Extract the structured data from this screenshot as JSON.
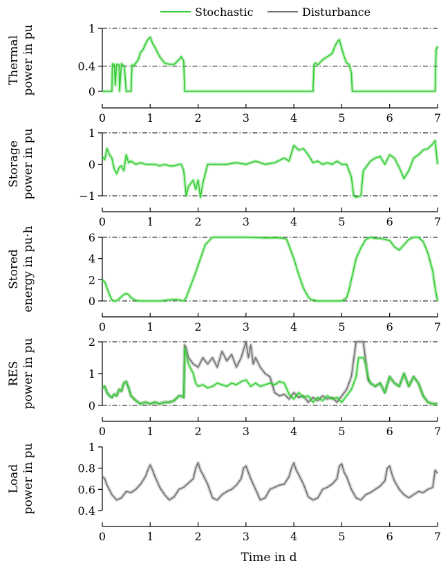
{
  "legend": [
    {
      "name": "Stochastic",
      "color": "#33cc33"
    },
    {
      "name": "Disturbance",
      "color": "#707070"
    }
  ],
  "xlabel": "Time in d",
  "chart_data": [
    {
      "type": "line",
      "ylabel_lines": [
        "Thermal",
        "power in pu"
      ],
      "xlim": [
        0,
        7
      ],
      "ylim": [
        0,
        1
      ],
      "x_ticks": [
        0,
        1,
        2,
        3,
        4,
        5,
        6,
        7
      ],
      "y_ticks": [
        0,
        0.4,
        1
      ],
      "y_tick_labels": [
        "0",
        "0.4",
        "1"
      ],
      "ref_lines": [
        0.4,
        1
      ],
      "series": [
        {
          "name": "Stochastic",
          "color": "#33cc33",
          "x": [
            0,
            0.05,
            0.2,
            0.21,
            0.22,
            0.25,
            0.27,
            0.3,
            0.35,
            0.36,
            0.4,
            0.42,
            0.46,
            0.5,
            0.55,
            0.6,
            0.62,
            0.65,
            0.7,
            0.75,
            0.8,
            0.85,
            0.9,
            0.95,
            1.0,
            1.05,
            1.1,
            1.15,
            1.2,
            1.3,
            1.4,
            1.5,
            1.6,
            1.65,
            1.7,
            1.72,
            1.75,
            2.0,
            3.0,
            4.0,
            4.4,
            4.42,
            4.45,
            4.5,
            4.6,
            4.7,
            4.8,
            4.85,
            4.9,
            4.95,
            5.0,
            5.05,
            5.1,
            5.15,
            5.2,
            5.22,
            5.5,
            6.0,
            6.5,
            6.95,
            6.97,
            7.0
          ],
          "y": [
            0,
            0,
            0,
            0.42,
            0.44,
            0.42,
            0.1,
            0.43,
            0.42,
            0,
            0.44,
            0.42,
            0.4,
            0,
            0,
            0,
            0.42,
            0.4,
            0.45,
            0.5,
            0.62,
            0.66,
            0.75,
            0.82,
            0.86,
            0.76,
            0.7,
            0.62,
            0.55,
            0.45,
            0.43,
            0.43,
            0.5,
            0.55,
            0.48,
            0,
            0,
            0,
            0,
            0,
            0,
            0.42,
            0.45,
            0.42,
            0.5,
            0.55,
            0.6,
            0.7,
            0.78,
            0.82,
            0.68,
            0.55,
            0.45,
            0.43,
            0.3,
            0,
            0,
            0,
            0,
            0,
            0.65,
            0.72
          ]
        }
      ]
    },
    {
      "type": "line",
      "ylabel_lines": [
        "Storage",
        "power in pu"
      ],
      "xlim": [
        0,
        7
      ],
      "ylim": [
        -1,
        1
      ],
      "x_ticks": [
        0,
        1,
        2,
        3,
        4,
        5,
        6,
        7
      ],
      "y_ticks": [
        -1,
        0,
        1
      ],
      "y_tick_labels": [
        "−1",
        "0",
        "1"
      ],
      "ref_lines": [
        -1,
        1
      ],
      "series": [
        {
          "name": "Stochastic",
          "color": "#33cc33",
          "x": [
            0,
            0.05,
            0.1,
            0.15,
            0.2,
            0.25,
            0.3,
            0.35,
            0.4,
            0.45,
            0.5,
            0.55,
            0.6,
            0.7,
            0.8,
            0.9,
            1.0,
            1.1,
            1.2,
            1.3,
            1.4,
            1.5,
            1.6,
            1.65,
            1.7,
            1.75,
            1.8,
            1.85,
            1.9,
            1.95,
            2.0,
            2.05,
            2.1,
            2.2,
            2.4,
            2.6,
            2.8,
            3.0,
            3.2,
            3.4,
            3.6,
            3.8,
            3.9,
            4.0,
            4.1,
            4.2,
            4.3,
            4.4,
            4.5,
            4.6,
            4.7,
            4.8,
            4.9,
            5.0,
            5.1,
            5.2,
            5.25,
            5.3,
            5.4,
            5.45,
            5.5,
            5.6,
            5.7,
            5.8,
            5.9,
            6.0,
            6.1,
            6.2,
            6.3,
            6.4,
            6.5,
            6.6,
            6.7,
            6.8,
            6.9,
            6.95,
            7.0
          ],
          "y": [
            0.25,
            0.15,
            0.5,
            0.3,
            0.2,
            -0.15,
            -0.3,
            -0.1,
            -0.05,
            -0.2,
            0.3,
            0.05,
            0.1,
            0.0,
            0.05,
            0.0,
            0.0,
            0.0,
            -0.05,
            0.0,
            -0.05,
            -0.05,
            0.0,
            0.0,
            -0.2,
            -1.0,
            -0.7,
            -0.6,
            -0.5,
            -0.8,
            -0.5,
            -1.05,
            -0.6,
            0.0,
            0.0,
            0.0,
            0.05,
            0.0,
            0.1,
            0.0,
            0.05,
            0.2,
            0.1,
            0.6,
            0.45,
            0.5,
            0.3,
            0.05,
            0.1,
            0.0,
            0.05,
            0.0,
            0.1,
            0.0,
            0.0,
            -0.4,
            -1.0,
            -1.05,
            -1.0,
            -0.2,
            -0.1,
            0.1,
            0.2,
            0.25,
            0.0,
            0.3,
            0.2,
            -0.1,
            -0.45,
            -0.2,
            0.2,
            0.3,
            0.45,
            0.5,
            0.65,
            0.75,
            0.0
          ]
        }
      ]
    },
    {
      "type": "line",
      "ylabel_lines": [
        "Stored",
        "energy in pu·h"
      ],
      "xlim": [
        0,
        7
      ],
      "ylim": [
        0,
        6
      ],
      "x_ticks": [
        0,
        1,
        2,
        3,
        4,
        5,
        6,
        7
      ],
      "y_ticks": [
        0,
        2,
        4,
        6
      ],
      "y_tick_labels": [
        "0",
        "2",
        "4",
        "6"
      ],
      "ref_lines": [
        0,
        6
      ],
      "series": [
        {
          "name": "Stochastic",
          "color": "#33cc33",
          "x": [
            0,
            0.05,
            0.1,
            0.15,
            0.2,
            0.25,
            0.3,
            0.4,
            0.45,
            0.5,
            0.55,
            0.6,
            0.7,
            0.8,
            1.0,
            1.2,
            1.4,
            1.5,
            1.6,
            1.7,
            1.75,
            1.85,
            1.95,
            2.05,
            2.15,
            2.3,
            2.6,
            3.0,
            3.4,
            3.7,
            3.8,
            3.85,
            3.9,
            4.0,
            4.1,
            4.2,
            4.3,
            4.35,
            4.4,
            4.5,
            4.6,
            4.8,
            5.0,
            5.1,
            5.15,
            5.2,
            5.25,
            5.3,
            5.4,
            5.5,
            5.6,
            5.7,
            5.8,
            5.9,
            6.0,
            6.05,
            6.1,
            6.2,
            6.3,
            6.4,
            6.5,
            6.6,
            6.7,
            6.8,
            6.9,
            6.95,
            7.0
          ],
          "y": [
            2.0,
            1.8,
            1.2,
            0.6,
            0.1,
            0.0,
            0.0,
            0.4,
            0.6,
            0.7,
            0.6,
            0.3,
            0.05,
            0.0,
            0.0,
            0.0,
            0.1,
            0.15,
            0.1,
            0.0,
            0.3,
            1.5,
            2.7,
            4.0,
            5.3,
            6.0,
            6.0,
            6.0,
            5.95,
            5.95,
            5.9,
            5.8,
            5.2,
            4.0,
            2.5,
            1.2,
            0.4,
            0.15,
            0.1,
            0.0,
            0.0,
            0.0,
            0.0,
            0.3,
            1.0,
            2.0,
            3.0,
            4.0,
            5.0,
            5.8,
            6.0,
            5.9,
            5.9,
            5.8,
            5.7,
            5.4,
            5.1,
            4.8,
            5.3,
            5.8,
            6.0,
            6.0,
            5.6,
            4.5,
            2.8,
            1.2,
            0.0
          ]
        }
      ]
    },
    {
      "type": "line",
      "ylabel_lines": [
        "RES",
        "power in pu"
      ],
      "xlim": [
        0,
        7
      ],
      "ylim": [
        0,
        2
      ],
      "x_ticks": [
        0,
        1,
        2,
        3,
        4,
        5,
        6,
        7
      ],
      "y_ticks": [
        0,
        1,
        2
      ],
      "y_tick_labels": [
        "0",
        "1",
        "2"
      ],
      "ref_lines": [
        0,
        2
      ],
      "series": [
        {
          "name": "Disturbance",
          "color": "#707070",
          "x": [
            0,
            0.05,
            0.1,
            0.15,
            0.2,
            0.25,
            0.3,
            0.35,
            0.4,
            0.45,
            0.5,
            0.55,
            0.6,
            0.7,
            0.8,
            0.9,
            1.0,
            1.1,
            1.2,
            1.3,
            1.4,
            1.5,
            1.6,
            1.65,
            1.7,
            1.72,
            1.75,
            1.8,
            1.9,
            2.0,
            2.1,
            2.2,
            2.3,
            2.4,
            2.5,
            2.6,
            2.7,
            2.8,
            2.9,
            3.0,
            3.05,
            3.1,
            3.15,
            3.2,
            3.3,
            3.4,
            3.5,
            3.6,
            3.7,
            3.8,
            3.9,
            4.0,
            4.1,
            4.2,
            4.3,
            4.4,
            4.5,
            4.6,
            4.7,
            4.8,
            4.9,
            5.0,
            5.1,
            5.2,
            5.3,
            5.35,
            5.45,
            5.5,
            5.55,
            5.6,
            5.7,
            5.8,
            5.9,
            6.0,
            6.1,
            6.2,
            6.3,
            6.4,
            6.5,
            6.6,
            6.7,
            6.8,
            6.9,
            7.0
          ],
          "y": [
            0.55,
            0.6,
            0.4,
            0.3,
            0.25,
            0.35,
            0.3,
            0.5,
            0.45,
            0.7,
            0.75,
            0.55,
            0.3,
            0.15,
            0.05,
            0.1,
            0.05,
            0.1,
            0.05,
            0.1,
            0.1,
            0.15,
            0.3,
            0.3,
            0.25,
            1.9,
            1.8,
            1.5,
            1.3,
            1.2,
            1.5,
            1.3,
            1.5,
            1.2,
            1.7,
            1.4,
            1.6,
            1.2,
            1.5,
            2.0,
            1.5,
            1.9,
            1.3,
            1.5,
            1.2,
            1.0,
            0.9,
            0.4,
            0.3,
            0.35,
            0.2,
            0.4,
            0.25,
            0.3,
            0.1,
            0.25,
            0.15,
            0.3,
            0.2,
            0.25,
            0.1,
            0.3,
            0.5,
            0.9,
            2.0,
            2.0,
            2.0,
            1.4,
            0.8,
            0.7,
            0.6,
            0.7,
            0.4,
            0.9,
            0.7,
            0.6,
            1.0,
            0.6,
            0.9,
            0.7,
            0.3,
            0.1,
            0.05,
            0.05
          ]
        },
        {
          "name": "Stochastic",
          "color": "#33cc33",
          "x": [
            0,
            0.05,
            0.1,
            0.15,
            0.2,
            0.25,
            0.3,
            0.35,
            0.4,
            0.45,
            0.5,
            0.55,
            0.6,
            0.7,
            0.8,
            0.9,
            1.0,
            1.1,
            1.2,
            1.3,
            1.4,
            1.5,
            1.6,
            1.65,
            1.7,
            1.72,
            1.75,
            1.8,
            1.9,
            1.95,
            2.0,
            2.1,
            2.2,
            2.3,
            2.4,
            2.5,
            2.6,
            2.7,
            2.8,
            2.9,
            3.0,
            3.1,
            3.2,
            3.3,
            3.4,
            3.5,
            3.6,
            3.7,
            3.8,
            3.9,
            4.0,
            4.1,
            4.2,
            4.3,
            4.4,
            4.5,
            4.6,
            4.7,
            4.8,
            4.9,
            5.0,
            5.1,
            5.2,
            5.3,
            5.35,
            5.45,
            5.5,
            5.55,
            5.6,
            5.7,
            5.8,
            5.9,
            6.0,
            6.1,
            6.2,
            6.3,
            6.4,
            6.5,
            6.6,
            6.7,
            6.8,
            6.9,
            7.0
          ],
          "y": [
            0.55,
            0.6,
            0.4,
            0.3,
            0.25,
            0.35,
            0.3,
            0.5,
            0.45,
            0.7,
            0.75,
            0.55,
            0.3,
            0.15,
            0.05,
            0.1,
            0.05,
            0.1,
            0.05,
            0.1,
            0.1,
            0.15,
            0.3,
            0.3,
            0.25,
            1.8,
            1.6,
            1.3,
            1.0,
            0.7,
            0.6,
            0.65,
            0.55,
            0.6,
            0.7,
            0.65,
            0.6,
            0.7,
            0.65,
            0.75,
            0.8,
            0.6,
            0.7,
            0.6,
            0.65,
            0.7,
            0.65,
            0.75,
            0.7,
            0.35,
            0.2,
            0.4,
            0.25,
            0.3,
            0.1,
            0.25,
            0.15,
            0.3,
            0.2,
            0.25,
            0.1,
            0.3,
            0.5,
            0.9,
            1.5,
            1.5,
            1.3,
            0.9,
            0.7,
            0.6,
            0.7,
            0.4,
            0.9,
            0.7,
            0.6,
            1.0,
            0.6,
            0.9,
            0.7,
            0.3,
            0.1,
            0.05,
            0.05
          ]
        }
      ]
    },
    {
      "type": "line",
      "ylabel_lines": [
        "Load",
        "power in pu"
      ],
      "xlim": [
        0,
        7
      ],
      "ylim": [
        0.4,
        1
      ],
      "x_ticks": [
        0,
        1,
        2,
        3,
        4,
        5,
        6,
        7
      ],
      "y_ticks": [
        0.4,
        0.6,
        0.8,
        1
      ],
      "y_tick_labels": [
        "0.4",
        "0.6",
        "0.8",
        "1"
      ],
      "ref_lines": [],
      "series": [
        {
          "name": "Disturbance",
          "color": "#707070",
          "x": [
            0,
            0.05,
            0.1,
            0.2,
            0.3,
            0.4,
            0.5,
            0.6,
            0.7,
            0.8,
            0.9,
            0.95,
            1.0,
            1.05,
            1.1,
            1.2,
            1.3,
            1.4,
            1.5,
            1.6,
            1.7,
            1.8,
            1.9,
            1.95,
            2.0,
            2.05,
            2.1,
            2.2,
            2.3,
            2.4,
            2.5,
            2.6,
            2.7,
            2.8,
            2.9,
            2.95,
            3.0,
            3.05,
            3.1,
            3.2,
            3.3,
            3.4,
            3.5,
            3.6,
            3.7,
            3.8,
            3.9,
            3.95,
            4.0,
            4.05,
            4.1,
            4.2,
            4.3,
            4.4,
            4.5,
            4.6,
            4.7,
            4.8,
            4.9,
            4.95,
            5.0,
            5.05,
            5.1,
            5.2,
            5.3,
            5.4,
            5.5,
            5.6,
            5.7,
            5.8,
            5.9,
            5.95,
            6.0,
            6.05,
            6.1,
            6.2,
            6.3,
            6.4,
            6.5,
            6.6,
            6.7,
            6.8,
            6.9,
            6.95,
            7.0
          ],
          "y": [
            0.72,
            0.7,
            0.64,
            0.55,
            0.5,
            0.52,
            0.58,
            0.57,
            0.6,
            0.65,
            0.72,
            0.78,
            0.83,
            0.78,
            0.72,
            0.62,
            0.55,
            0.5,
            0.53,
            0.6,
            0.62,
            0.66,
            0.7,
            0.8,
            0.85,
            0.78,
            0.74,
            0.65,
            0.52,
            0.5,
            0.55,
            0.58,
            0.6,
            0.64,
            0.7,
            0.8,
            0.82,
            0.76,
            0.7,
            0.6,
            0.5,
            0.52,
            0.6,
            0.62,
            0.64,
            0.65,
            0.72,
            0.8,
            0.85,
            0.78,
            0.74,
            0.65,
            0.53,
            0.5,
            0.52,
            0.6,
            0.62,
            0.65,
            0.7,
            0.82,
            0.84,
            0.76,
            0.72,
            0.6,
            0.52,
            0.5,
            0.55,
            0.57,
            0.6,
            0.63,
            0.68,
            0.8,
            0.82,
            0.74,
            0.68,
            0.6,
            0.55,
            0.52,
            0.55,
            0.58,
            0.57,
            0.6,
            0.62,
            0.78,
            0.75
          ]
        }
      ]
    }
  ]
}
